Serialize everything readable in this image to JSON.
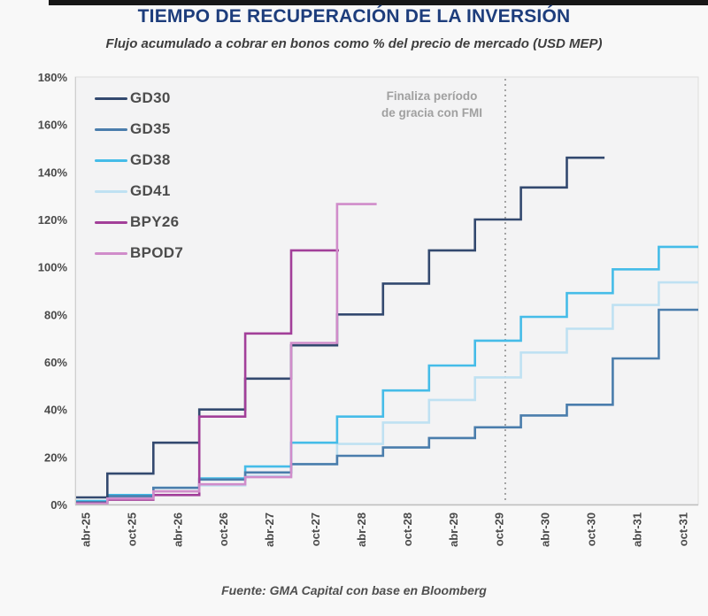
{
  "top_bar": {
    "color": "#171717"
  },
  "chart_data": {
    "type": "line",
    "step": true,
    "title": "TIEMPO DE RECUPERACIÓN DE LA INVERSIÓN",
    "subtitle": "Flujo acumulado a cobrar en bonos como % del precio de mercado (USD MEP)",
    "source": "Fuente: GMA Capital con base en Bloomberg",
    "legend_position": "top-left",
    "grid": false,
    "annotation": {
      "line1": "Finaliza período",
      "line2": "de gracia con FMI",
      "x": 2029.85,
      "color": "#909090"
    },
    "x_axis": {
      "domain": [
        2025.17,
        2031.95
      ],
      "tick_positions": [
        2025.29,
        2025.79,
        2026.29,
        2026.79,
        2027.29,
        2027.79,
        2028.29,
        2028.79,
        2029.29,
        2029.79,
        2030.29,
        2030.79,
        2031.29,
        2031.79
      ],
      "tick_labels": [
        "abr-25",
        "oct-25",
        "abr-26",
        "oct-26",
        "abr-27",
        "oct-27",
        "abr-28",
        "oct-28",
        "abr-29",
        "oct-29",
        "abr-30",
        "oct-30",
        "abr-31",
        "oct-31"
      ]
    },
    "y_axis": {
      "domain": [
        0,
        180
      ],
      "tick_step": 20,
      "tick_labels": [
        "0%",
        "20%",
        "40%",
        "60%",
        "80%",
        "100%",
        "120%",
        "140%",
        "160%",
        "180%"
      ]
    },
    "series": [
      {
        "name": "GD30",
        "color": "#33496f",
        "z": 4,
        "end": 2030.93,
        "points": [
          [
            2025.17,
            3
          ],
          [
            2025.52,
            13
          ],
          [
            2026.02,
            26
          ],
          [
            2026.52,
            40
          ],
          [
            2027.02,
            53
          ],
          [
            2027.52,
            67
          ],
          [
            2028.02,
            80
          ],
          [
            2028.52,
            93
          ],
          [
            2029.02,
            107
          ],
          [
            2029.52,
            120
          ],
          [
            2030.02,
            133.5
          ],
          [
            2030.52,
            146
          ]
        ]
      },
      {
        "name": "GD35",
        "color": "#4a7dac",
        "z": 3,
        "end": 2031.95,
        "points": [
          [
            2025.17,
            1
          ],
          [
            2025.52,
            3.5
          ],
          [
            2026.02,
            7
          ],
          [
            2026.52,
            10.5
          ],
          [
            2027.02,
            13.5
          ],
          [
            2027.52,
            17
          ],
          [
            2028.02,
            20.5
          ],
          [
            2028.52,
            24
          ],
          [
            2029.02,
            28
          ],
          [
            2029.52,
            32.5
          ],
          [
            2030.02,
            37.5
          ],
          [
            2030.52,
            42
          ],
          [
            2031.02,
            61.5
          ],
          [
            2031.52,
            82
          ]
        ]
      },
      {
        "name": "GD38",
        "color": "#45bce8",
        "z": 2,
        "end": 2031.95,
        "points": [
          [
            2025.17,
            1.5
          ],
          [
            2025.52,
            4
          ],
          [
            2026.02,
            7
          ],
          [
            2026.52,
            11
          ],
          [
            2027.02,
            16
          ],
          [
            2027.52,
            26
          ],
          [
            2028.02,
            37
          ],
          [
            2028.52,
            48
          ],
          [
            2029.02,
            58.5
          ],
          [
            2029.52,
            69
          ],
          [
            2030.02,
            79
          ],
          [
            2030.52,
            89
          ],
          [
            2031.02,
            99
          ],
          [
            2031.52,
            108.5
          ]
        ]
      },
      {
        "name": "GD41",
        "color": "#bfe1f2",
        "z": 1,
        "end": 2031.95,
        "points": [
          [
            2025.17,
            1
          ],
          [
            2025.52,
            3
          ],
          [
            2026.02,
            5.5
          ],
          [
            2026.52,
            8
          ],
          [
            2027.02,
            12
          ],
          [
            2027.52,
            17
          ],
          [
            2028.02,
            25.5
          ],
          [
            2028.52,
            34.5
          ],
          [
            2029.02,
            44
          ],
          [
            2029.52,
            53.5
          ],
          [
            2030.02,
            64
          ],
          [
            2030.52,
            74
          ],
          [
            2031.02,
            84
          ],
          [
            2031.52,
            93.5
          ]
        ]
      },
      {
        "name": "BPY26",
        "color": "#a23f99",
        "z": 5,
        "end": 2028.04,
        "points": [
          [
            2025.17,
            0.5
          ],
          [
            2025.52,
            2
          ],
          [
            2026.02,
            4
          ],
          [
            2026.52,
            37
          ],
          [
            2027.02,
            72
          ],
          [
            2027.52,
            107
          ]
        ]
      },
      {
        "name": "BPOD7",
        "color": "#d08cca",
        "z": 6,
        "end": 2028.45,
        "points": [
          [
            2025.17,
            0.3
          ],
          [
            2025.52,
            2.5
          ],
          [
            2026.02,
            5.5
          ],
          [
            2026.52,
            8.5
          ],
          [
            2027.02,
            11.5
          ],
          [
            2027.52,
            68
          ],
          [
            2028.02,
            126.5
          ]
        ]
      }
    ]
  }
}
